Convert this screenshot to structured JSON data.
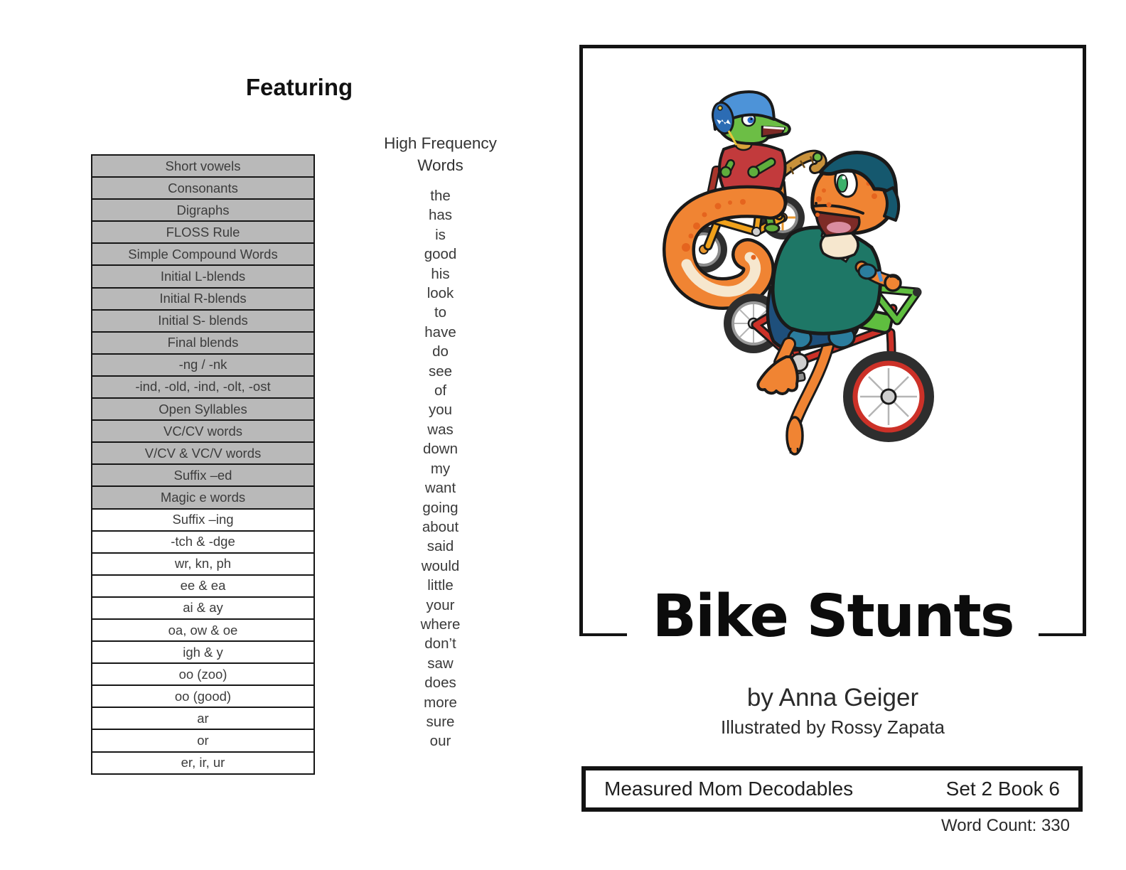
{
  "featuring": {
    "title": "Featuring",
    "skills": [
      {
        "label": "Short vowels",
        "shaded": true
      },
      {
        "label": "Consonants",
        "shaded": true
      },
      {
        "label": "Digraphs",
        "shaded": true
      },
      {
        "label": "FLOSS Rule",
        "shaded": true
      },
      {
        "label": "Simple Compound Words",
        "shaded": true
      },
      {
        "label": "Initial L-blends",
        "shaded": true
      },
      {
        "label": "Initial R-blends",
        "shaded": true
      },
      {
        "label": "Initial S- blends",
        "shaded": true
      },
      {
        "label": "Final blends",
        "shaded": true
      },
      {
        "label": "-ng / -nk",
        "shaded": true
      },
      {
        "label": "-ind, -old, -ind, -olt, -ost",
        "shaded": true
      },
      {
        "label": "Open Syllables",
        "shaded": true
      },
      {
        "label": "VC/CV words",
        "shaded": true
      },
      {
        "label": "V/CV & VC/V words",
        "shaded": true
      },
      {
        "label": "Suffix –ed",
        "shaded": true
      },
      {
        "label": "Magic e words",
        "shaded": true
      },
      {
        "label": "Suffix –ing",
        "shaded": false
      },
      {
        "label": "-tch & -dge",
        "shaded": false
      },
      {
        "label": "wr, kn, ph",
        "shaded": false
      },
      {
        "label": "ee & ea",
        "shaded": false
      },
      {
        "label": "ai & ay",
        "shaded": false
      },
      {
        "label": "oa, ow & oe",
        "shaded": false
      },
      {
        "label": "igh & y",
        "shaded": false
      },
      {
        "label": "oo (zoo)",
        "shaded": false
      },
      {
        "label": "oo (good)",
        "shaded": false
      },
      {
        "label": "ar",
        "shaded": false
      },
      {
        "label": "or",
        "shaded": false
      },
      {
        "label": "er, ir, ur",
        "shaded": false
      }
    ]
  },
  "high_frequency_words": {
    "title": "High Frequency Words",
    "words": [
      "the",
      "has",
      "is",
      "good",
      "his",
      "look",
      "to",
      "have",
      "do",
      "see",
      "of",
      "you",
      "was",
      "down",
      "my",
      "want",
      "going",
      "about",
      "said",
      "would",
      "little",
      "your",
      "where",
      "don’t",
      "saw",
      "does",
      "more",
      "sure",
      "our"
    ]
  },
  "cover": {
    "title": "Bike Stunts",
    "byline": "by Anna Geiger",
    "illustrator": "Illustrated by Rossy Zapata",
    "footer": {
      "left": "Measured Mom Decodables",
      "right": "Set 2 Book 6"
    },
    "word_count": "Word Count: 330",
    "illustration": {
      "description": "Small green crocodile in blue helmet and red shirt riding an orange bike beside a large orange gecko in a dark teal helmet and green shirt popping a wheelie on a red bike with green handlebars",
      "colors": {
        "table_shade": "#b9b9b9",
        "border_black": "#161616",
        "croc_green": "#6cbe45",
        "croc_helmet_blue": "#4d93d8",
        "croc_shirt_red": "#c23a3c",
        "croc_shorts_orange": "#e8862c",
        "small_bike_orange": "#f0a11b",
        "gecko_orange": "#f08433",
        "gecko_shirt_teal": "#1e7766",
        "gecko_shorts_navy": "#1e4f7b",
        "gecko_helmet_teal": "#15586e",
        "big_bike_red": "#cc3128",
        "handlebar_green": "#5fbe3f"
      }
    }
  }
}
